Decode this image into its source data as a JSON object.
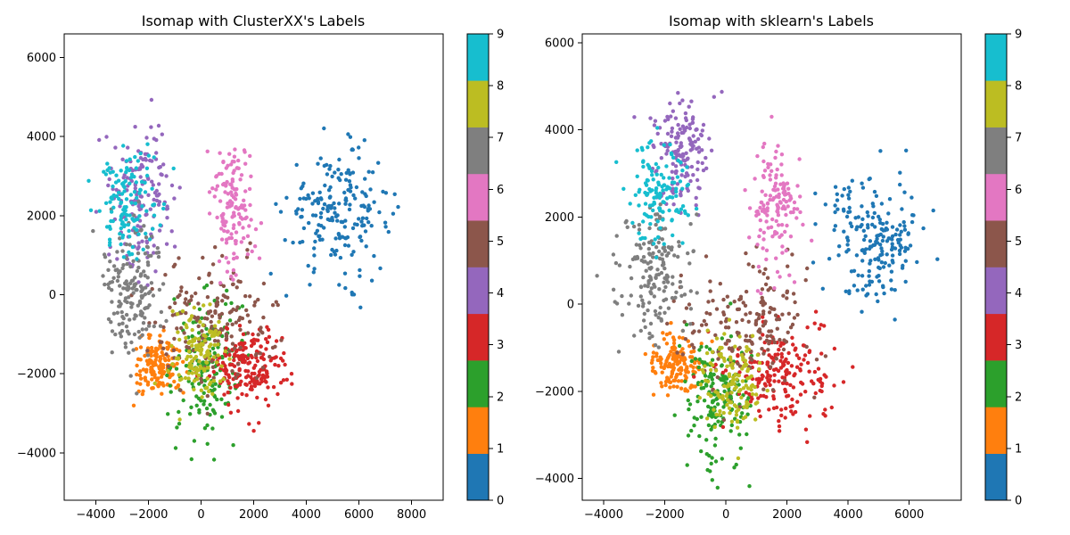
{
  "chart_data": [
    {
      "type": "scatter",
      "title": "Isomap with ClusterXX's Labels",
      "xlim": [
        -5200,
        9200
      ],
      "ylim": [
        -5200,
        6600
      ],
      "xticks": [
        -4000,
        -2000,
        0,
        2000,
        4000,
        6000,
        8000
      ],
      "yticks": [
        -4000,
        -2000,
        0,
        2000,
        4000,
        6000
      ],
      "xtick_labels": [
        "−4000",
        "−2000",
        "0",
        "2000",
        "4000",
        "6000",
        "8000"
      ],
      "ytick_labels": [
        "−4000",
        "−2000",
        "0",
        "2000",
        "4000",
        "6000"
      ],
      "clusters": [
        {
          "label": 0,
          "cx": 5200,
          "cy": 2100,
          "sx": 1400,
          "sy": 1100,
          "n": 200
        },
        {
          "label": 1,
          "cx": -1600,
          "cy": -1800,
          "sx": 700,
          "sy": 500,
          "n": 150
        },
        {
          "label": 2,
          "cx": 200,
          "cy": -1800,
          "sx": 900,
          "sy": 1300,
          "n": 170
        },
        {
          "label": 3,
          "cx": 1800,
          "cy": -1800,
          "sx": 1100,
          "sy": 700,
          "n": 200
        },
        {
          "label": 4,
          "cx": -2200,
          "cy": 2500,
          "sx": 800,
          "sy": 1300,
          "n": 160
        },
        {
          "label": 5,
          "cx": 600,
          "cy": -700,
          "sx": 1700,
          "sy": 1100,
          "n": 180
        },
        {
          "label": 6,
          "cx": 1200,
          "cy": 2200,
          "sx": 600,
          "sy": 1200,
          "n": 140
        },
        {
          "label": 7,
          "cx": -2600,
          "cy": 200,
          "sx": 800,
          "sy": 1200,
          "n": 170
        },
        {
          "label": 8,
          "cx": 0,
          "cy": -1500,
          "sx": 800,
          "sy": 900,
          "n": 130
        },
        {
          "label": 9,
          "cx": -2800,
          "cy": 2300,
          "sx": 800,
          "sy": 900,
          "n": 130
        }
      ]
    },
    {
      "type": "scatter",
      "title": "Isomap with sklearn's Labels",
      "xlim": [
        -4700,
        7700
      ],
      "ylim": [
        -4500,
        6200
      ],
      "xticks": [
        -4000,
        -2000,
        0,
        2000,
        4000,
        6000
      ],
      "yticks": [
        -4000,
        -2000,
        0,
        2000,
        4000,
        6000
      ],
      "xtick_labels": [
        "−4000",
        "−2000",
        "0",
        "2000",
        "4000",
        "6000"
      ],
      "ytick_labels": [
        "−4000",
        "−2000",
        "0",
        "2000",
        "4000",
        "6000"
      ],
      "clusters": [
        {
          "label": 0,
          "cx": 4800,
          "cy": 1600,
          "sx": 1100,
          "sy": 1100,
          "n": 200
        },
        {
          "label": 1,
          "cx": -1600,
          "cy": -1400,
          "sx": 600,
          "sy": 500,
          "n": 150
        },
        {
          "label": 2,
          "cx": -300,
          "cy": -2200,
          "sx": 700,
          "sy": 1000,
          "n": 170
        },
        {
          "label": 3,
          "cx": 1800,
          "cy": -1600,
          "sx": 1200,
          "sy": 800,
          "n": 200
        },
        {
          "label": 4,
          "cx": -1500,
          "cy": 3500,
          "sx": 700,
          "sy": 900,
          "n": 160
        },
        {
          "label": 5,
          "cx": 800,
          "cy": -500,
          "sx": 1500,
          "sy": 1000,
          "n": 180
        },
        {
          "label": 6,
          "cx": 1600,
          "cy": 2200,
          "sx": 600,
          "sy": 1000,
          "n": 140
        },
        {
          "label": 7,
          "cx": -2300,
          "cy": 600,
          "sx": 800,
          "sy": 1100,
          "n": 170
        },
        {
          "label": 8,
          "cx": 200,
          "cy": -1800,
          "sx": 700,
          "sy": 800,
          "n": 130
        },
        {
          "label": 9,
          "cx": -2200,
          "cy": 2600,
          "sx": 700,
          "sy": 800,
          "n": 130
        }
      ]
    }
  ],
  "colorbar": {
    "ticks": [
      0,
      1,
      2,
      3,
      4,
      5,
      6,
      7,
      8,
      9
    ],
    "tick_labels": [
      "0",
      "1",
      "2",
      "3",
      "4",
      "5",
      "6",
      "7",
      "8",
      "9"
    ],
    "colors": [
      "#1f77b4",
      "#ff7f0e",
      "#2ca02c",
      "#d62728",
      "#9467bd",
      "#8c564b",
      "#e377c2",
      "#7f7f7f",
      "#bcbd22",
      "#17becf"
    ]
  }
}
